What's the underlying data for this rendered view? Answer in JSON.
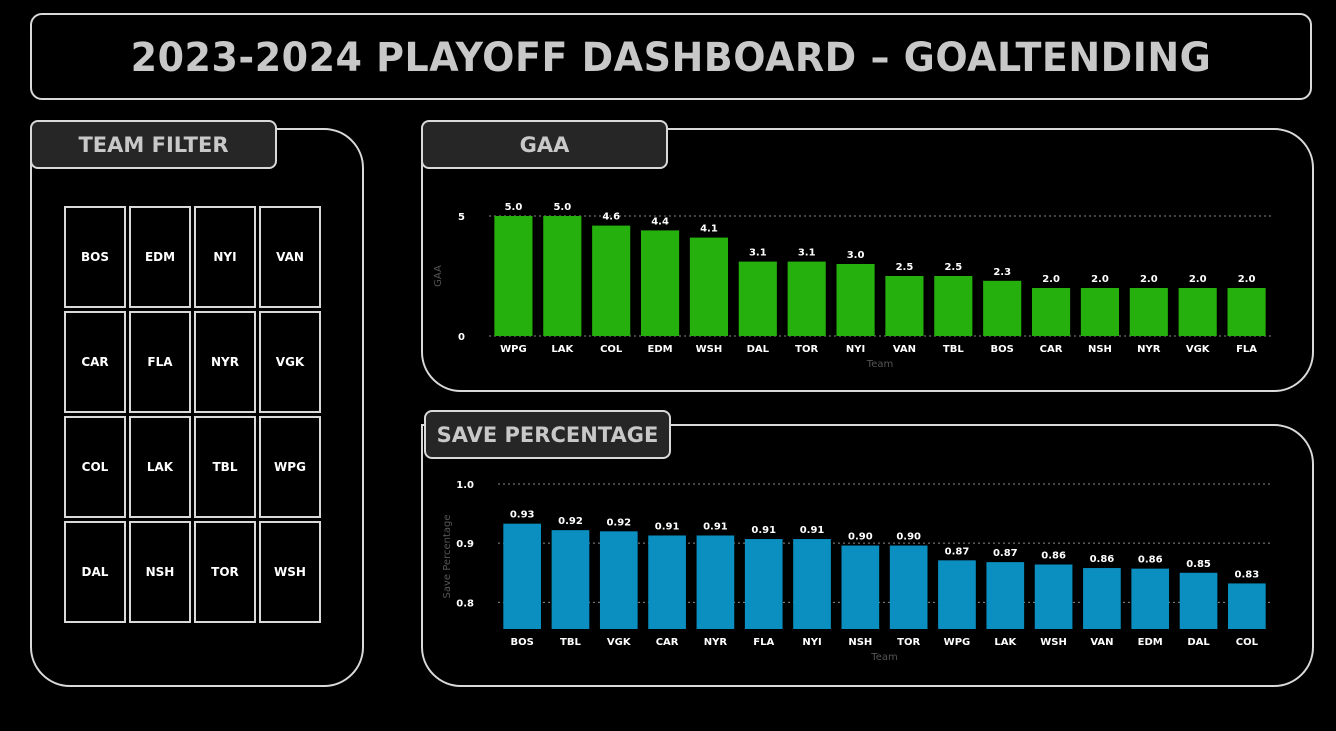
{
  "header": {
    "title": "2023-2024 PLAYOFF DASHBOARD –  GOALTENDING"
  },
  "filter": {
    "title": "TEAM FILTER",
    "teams": [
      "BOS",
      "EDM",
      "NYI",
      "VAN",
      "CAR",
      "FLA",
      "NYR",
      "VGK",
      "COL",
      "LAK",
      "TBL",
      "WPG",
      "DAL",
      "NSH",
      "TOR",
      "WSH"
    ]
  },
  "colors": {
    "gaa_bar": "#26b00e",
    "save_bar": "#0b8fc1",
    "border": "#d9d9d9",
    "tab_bg": "#262626"
  },
  "gaa_panel": {
    "title": "GAA"
  },
  "save_panel": {
    "title": "SAVE PERCENTAGE"
  },
  "chart_data": [
    {
      "type": "bar",
      "categories": [
        "WPG",
        "LAK",
        "COL",
        "EDM",
        "WSH",
        "DAL",
        "TOR",
        "NYI",
        "VAN",
        "TBL",
        "BOS",
        "CAR",
        "NSH",
        "NYR",
        "VGK",
        "FLA"
      ],
      "values": [
        5.0,
        5.0,
        4.6,
        4.4,
        4.1,
        3.1,
        3.1,
        3.0,
        2.5,
        2.5,
        2.3,
        2.0,
        2.0,
        2.0,
        2.0,
        2.0
      ],
      "data_labels": [
        "5.0",
        "5.0",
        "4.6",
        "4.4",
        "4.1",
        "3.1",
        "3.1",
        "3.0",
        "2.5",
        "2.5",
        "2.3",
        "2.0",
        "2.0",
        "2.0",
        "2.0",
        "2.0"
      ],
      "xlabel": "Team",
      "ylabel": "GAA",
      "ylim": [
        0,
        5
      ],
      "yticks": [
        0,
        5
      ],
      "ytick_labels": [
        "0",
        "5"
      ],
      "grid": true
    },
    {
      "type": "bar",
      "categories": [
        "BOS",
        "TBL",
        "VGK",
        "CAR",
        "NYR",
        "FLA",
        "NYI",
        "NSH",
        "TOR",
        "WPG",
        "LAK",
        "WSH",
        "VAN",
        "EDM",
        "DAL",
        "COL"
      ],
      "values": [
        0.933,
        0.922,
        0.92,
        0.913,
        0.913,
        0.907,
        0.907,
        0.896,
        0.896,
        0.871,
        0.868,
        0.864,
        0.858,
        0.857,
        0.85,
        0.832
      ],
      "data_labels": [
        "0.93",
        "0.92",
        "0.92",
        "0.91",
        "0.91",
        "0.91",
        "0.91",
        "0.90",
        "0.90",
        "0.87",
        "0.87",
        "0.86",
        "0.86",
        "0.86",
        "0.85",
        "0.83"
      ],
      "xlabel": "Team",
      "ylabel": "Save Percentage",
      "ylim": [
        0.755,
        1.0
      ],
      "yticks": [
        0.8,
        0.9,
        1.0
      ],
      "ytick_labels": [
        "0.8",
        "0.9",
        "1.0"
      ],
      "grid": true
    }
  ]
}
